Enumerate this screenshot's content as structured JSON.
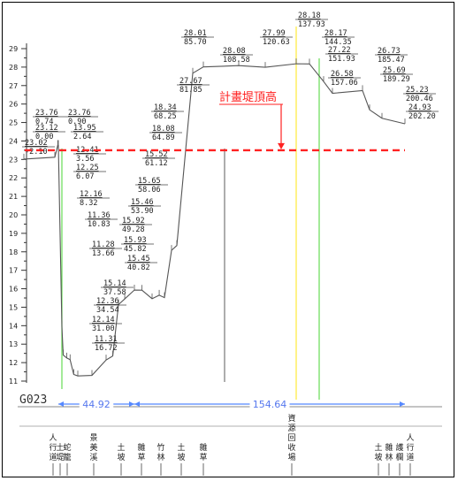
{
  "section_id": "G023",
  "design_crest_label": "計畫堤頂高",
  "design_crest_elevation": 23.5,
  "y_axis": {
    "min": 11,
    "max": 29,
    "tick_labels": [
      "29",
      "28",
      "27",
      "26",
      "25",
      "24",
      "23",
      "22",
      "21",
      "20",
      "19",
      "18",
      "17",
      "16",
      "15",
      "14",
      "13",
      "12",
      "11"
    ]
  },
  "spans": [
    {
      "label": "44.92",
      "from": 0,
      "to": 44.92
    },
    {
      "label": "154.64",
      "from": 44.92,
      "to": 199.56
    }
  ],
  "chart_data": {
    "type": "cross-section",
    "title": "",
    "xlabel": "",
    "ylabel": "",
    "ylim": [
      11,
      29
    ],
    "xlim": [
      -2.5,
      203
    ],
    "grid": false,
    "survey_points": [
      {
        "elevation": "23.76",
        "offset": "0.74"
      },
      {
        "elevation": "23.76",
        "offset": "0.90"
      },
      {
        "elevation": "23.12",
        "offset": "0.00"
      },
      {
        "elevation": "13.95",
        "offset": "2.64"
      },
      {
        "elevation": "23.02",
        "offset": "-2.10"
      },
      {
        "elevation": "12.41",
        "offset": "3.56"
      },
      {
        "elevation": "12.25",
        "offset": "6.07"
      },
      {
        "elevation": "12.16",
        "offset": "8.32"
      },
      {
        "elevation": "11.36",
        "offset": "10.83"
      },
      {
        "elevation": "11.28",
        "offset": "13.66"
      },
      {
        "elevation": "15.14",
        "offset": "37.58"
      },
      {
        "elevation": "12.36",
        "offset": "34.54"
      },
      {
        "elevation": "12.14",
        "offset": "31.00"
      },
      {
        "elevation": "11.31",
        "offset": "16.72"
      },
      {
        "elevation": "15.92",
        "offset": "49.28"
      },
      {
        "elevation": "15.93",
        "offset": "45.82"
      },
      {
        "elevation": "15.45",
        "offset": "40.82"
      },
      {
        "elevation": "15.46",
        "offset": "53.90"
      },
      {
        "elevation": "15.65",
        "offset": "58.06"
      },
      {
        "elevation": "15.52",
        "offset": "61.12"
      },
      {
        "elevation": "18.08",
        "offset": "64.89"
      },
      {
        "elevation": "18.34",
        "offset": "68.25"
      },
      {
        "elevation": "27.67",
        "offset": "81.85"
      },
      {
        "elevation": "28.01",
        "offset": "85.70"
      },
      {
        "elevation": "28.08",
        "offset": "108.58"
      },
      {
        "elevation": "27.99",
        "offset": "120.63"
      },
      {
        "elevation": "28.18",
        "offset": "137.93"
      },
      {
        "elevation": "28.17",
        "offset": "144.35"
      },
      {
        "elevation": "27.22",
        "offset": "151.93"
      },
      {
        "elevation": "26.58",
        "offset": "157.06"
      },
      {
        "elevation": "26.73",
        "offset": "185.47"
      },
      {
        "elevation": "25.69",
        "offset": "189.29"
      },
      {
        "elevation": "25.23",
        "offset": "200.46"
      },
      {
        "elevation": "24.93",
        "offset": "202.20"
      }
    ],
    "profile": [
      [
        -2.1,
        23.02
      ],
      [
        0.0,
        23.12
      ],
      [
        0.74,
        23.76
      ],
      [
        0.9,
        23.76
      ],
      [
        2.64,
        13.95
      ],
      [
        3.56,
        12.41
      ],
      [
        6.07,
        12.25
      ],
      [
        8.32,
        12.16
      ],
      [
        10.83,
        11.36
      ],
      [
        13.66,
        11.28
      ],
      [
        16.72,
        11.31
      ],
      [
        31.0,
        12.14
      ],
      [
        34.54,
        12.36
      ],
      [
        37.58,
        15.14
      ],
      [
        40.82,
        15.45
      ],
      [
        45.82,
        15.93
      ],
      [
        49.28,
        15.92
      ],
      [
        53.9,
        15.46
      ],
      [
        58.06,
        15.65
      ],
      [
        61.12,
        15.52
      ],
      [
        64.89,
        18.08
      ],
      [
        68.25,
        18.34
      ],
      [
        81.85,
        27.67
      ],
      [
        85.7,
        28.01
      ],
      [
        108.58,
        28.08
      ],
      [
        120.63,
        27.99
      ],
      [
        137.93,
        28.18
      ],
      [
        144.35,
        28.17
      ],
      [
        151.93,
        27.22
      ],
      [
        157.06,
        26.58
      ],
      [
        185.47,
        26.73
      ],
      [
        189.29,
        25.69
      ],
      [
        200.46,
        25.23
      ],
      [
        202.2,
        24.93
      ]
    ]
  },
  "land_use": [
    {
      "id": "pedestrian-path",
      "lines": [
        "人",
        "行",
        "道"
      ]
    },
    {
      "id": "soil-1",
      "lines": [
        "土",
        "堤"
      ]
    },
    {
      "id": "snake-cage",
      "lines": [
        "蛇",
        "籠"
      ]
    },
    {
      "id": "scenic-stream",
      "lines": [
        "景",
        "美",
        "溪"
      ]
    },
    {
      "id": "soil-2",
      "lines": [
        "土",
        "坡"
      ]
    },
    {
      "id": "weeds-1",
      "lines": [
        "雜",
        "草"
      ]
    },
    {
      "id": "bamboo",
      "lines": [
        "竹",
        "林"
      ]
    },
    {
      "id": "soil-3",
      "lines": [
        "土",
        "坡"
      ]
    },
    {
      "id": "weeds-2",
      "lines": [
        "雜",
        "草"
      ]
    },
    {
      "id": "recycling-yard",
      "lines": [
        "資",
        "源",
        "回",
        "收",
        "場"
      ]
    },
    {
      "id": "soil-4",
      "lines": [
        "土",
        "坡"
      ]
    },
    {
      "id": "weeds-forest",
      "lines": [
        "雜",
        "林"
      ]
    },
    {
      "id": "fence",
      "lines": [
        "護",
        "欄"
      ]
    },
    {
      "id": "pedestrian-path-2",
      "lines": [
        "人",
        "行",
        "道"
      ]
    }
  ]
}
